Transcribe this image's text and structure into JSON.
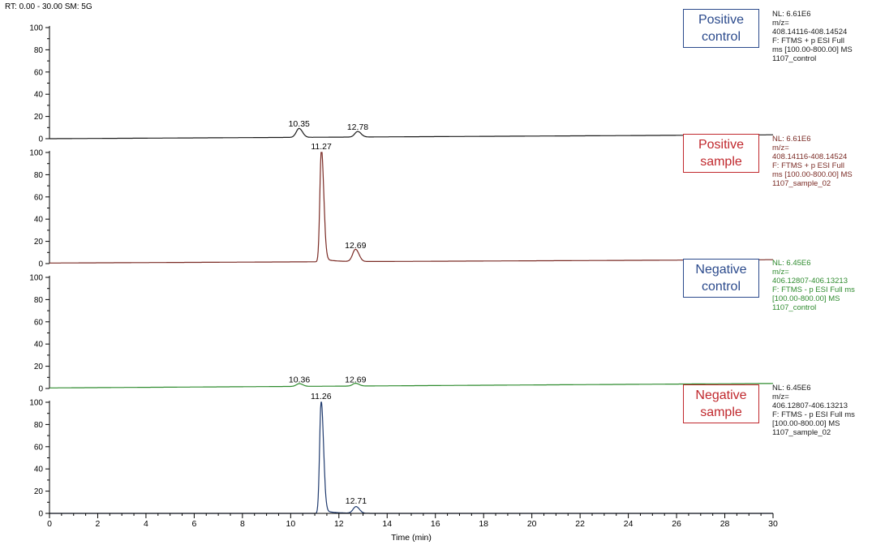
{
  "header": "RT: 0.00 - 30.00   SM: 5G",
  "chart_data": {
    "type": "line",
    "xlabel": "Time (min)",
    "xlim": [
      0,
      30
    ],
    "x_ticks": [
      "0",
      "2",
      "4",
      "6",
      "8",
      "10",
      "12",
      "14",
      "16",
      "18",
      "20",
      "22",
      "24",
      "26",
      "28",
      "30"
    ],
    "ylim": [
      0,
      100
    ],
    "y_ticks": [
      "0",
      "20",
      "40",
      "60",
      "80",
      "100"
    ],
    "panels": [
      {
        "label": "Positive\ncontrol",
        "label_color": "#2b4a8c",
        "trace_color": "#1a1a1a",
        "info_color": "#1a1a1a",
        "info": [
          "NL: 6.61E6",
          "m/z=",
          "408.14116-408.14524",
          "F: FTMS + p ESI Full",
          "ms [100.00-800.00]  MS",
          "1107_control"
        ],
        "baseline_start": 0.0,
        "baseline_end": 3.5,
        "peaks": [
          {
            "rt": 10.35,
            "height": 8,
            "label": "10.35"
          },
          {
            "rt": 12.78,
            "height": 5,
            "label": "12.78"
          }
        ]
      },
      {
        "label": "Positive\nsample",
        "label_color": "#c0282d",
        "trace_color": "#7a2a24",
        "info_color": "#7a2a24",
        "info": [
          "NL: 6.61E6",
          "m/z=",
          "408.14116-408.14524",
          "F: FTMS + p ESI Full",
          "ms [100.00-800.00]  MS",
          "1107_sample_02"
        ],
        "baseline_start": 0.5,
        "baseline_end": 3.5,
        "peaks": [
          {
            "rt": 11.27,
            "height": 100,
            "label": "11.27"
          },
          {
            "rt": 12.69,
            "height": 11,
            "label": "12.69"
          }
        ]
      },
      {
        "label": "Negative\ncontrol",
        "label_color": "#2b4a8c",
        "trace_color": "#2e8b2e",
        "info_color": "#2e8b2e",
        "info": [
          "NL: 6.45E6",
          "m/z=",
          "406.12807-406.13213",
          "F: FTMS - p ESI Full ms",
          "[100.00-800.00]  MS",
          "1107_control"
        ],
        "baseline_start": 0.5,
        "baseline_end": 4.5,
        "peaks": [
          {
            "rt": 10.36,
            "height": 2.5,
            "label": "10.36"
          },
          {
            "rt": 12.69,
            "height": 2.5,
            "label": "12.69"
          }
        ]
      },
      {
        "label": "Negative\nsample",
        "label_color": "#c0282d",
        "trace_color": "#1f3a6e",
        "info_color": "#1a1a1a",
        "info": [
          "NL: 6.45E6",
          "m/z=",
          "406.12807-406.13213",
          "F: FTMS - p ESI Full ms",
          "[100.00-800.00]  MS",
          "1107_sample_02"
        ],
        "baseline_start": 0.0,
        "baseline_end": 0.0,
        "peaks": [
          {
            "rt": 11.26,
            "height": 100,
            "label": "11.26"
          },
          {
            "rt": 12.71,
            "height": 6,
            "label": "12.71"
          }
        ]
      }
    ]
  }
}
